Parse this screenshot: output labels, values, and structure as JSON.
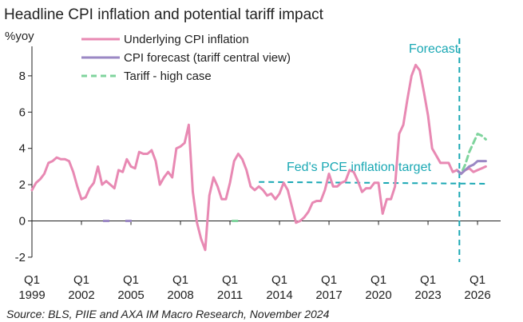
{
  "chart_data": {
    "type": "line",
    "title": "Headline CPI inflation and potential tariff impact",
    "ylabel": "%yoy",
    "ylim": [
      -2,
      10
    ],
    "xlim": [
      1999.0,
      2027.4
    ],
    "grid": false,
    "legend_position": "top-left",
    "yticks": [
      -2,
      0,
      2,
      4,
      6,
      8
    ],
    "xticks": [
      {
        "q": "Q1",
        "year": "1999",
        "x": 1999.0
      },
      {
        "q": "Q1",
        "year": "2002",
        "x": 2002.0
      },
      {
        "q": "Q1",
        "year": "2005",
        "x": 2005.0
      },
      {
        "q": "Q1",
        "year": "2008",
        "x": 2008.0
      },
      {
        "q": "Q1",
        "year": "2011",
        "x": 2011.0
      },
      {
        "q": "Q1",
        "year": "2014",
        "x": 2014.0
      },
      {
        "q": "Q1",
        "year": "2017",
        "x": 2017.0
      },
      {
        "q": "Q1",
        "year": "2020",
        "x": 2020.0
      },
      {
        "q": "Q1",
        "year": "2023",
        "x": 2023.0
      },
      {
        "q": "Q1",
        "year": "2026",
        "x": 2026.0
      }
    ],
    "series": [
      {
        "name": "Underlying CPI inflation",
        "color": "#e889b3",
        "style": "solid",
        "points": [
          [
            1999.0,
            1.7
          ],
          [
            1999.25,
            2.1
          ],
          [
            1999.5,
            2.3
          ],
          [
            1999.75,
            2.6
          ],
          [
            2000.0,
            3.2
          ],
          [
            2000.25,
            3.3
          ],
          [
            2000.5,
            3.5
          ],
          [
            2000.75,
            3.4
          ],
          [
            2001.0,
            3.4
          ],
          [
            2001.25,
            3.3
          ],
          [
            2001.5,
            2.7
          ],
          [
            2001.75,
            1.9
          ],
          [
            2002.0,
            1.2
          ],
          [
            2002.25,
            1.3
          ],
          [
            2002.5,
            1.8
          ],
          [
            2002.75,
            2.1
          ],
          [
            2003.0,
            3.0
          ],
          [
            2003.25,
            2.0
          ],
          [
            2003.5,
            2.2
          ],
          [
            2003.75,
            2.0
          ],
          [
            2004.0,
            1.8
          ],
          [
            2004.25,
            2.8
          ],
          [
            2004.5,
            2.7
          ],
          [
            2004.75,
            3.4
          ],
          [
            2005.0,
            3.0
          ],
          [
            2005.25,
            2.9
          ],
          [
            2005.5,
            3.8
          ],
          [
            2005.75,
            3.7
          ],
          [
            2006.0,
            3.7
          ],
          [
            2006.25,
            3.9
          ],
          [
            2006.5,
            3.3
          ],
          [
            2006.75,
            2.0
          ],
          [
            2007.0,
            2.4
          ],
          [
            2007.25,
            2.7
          ],
          [
            2007.5,
            2.4
          ],
          [
            2007.75,
            4.0
          ],
          [
            2008.0,
            4.1
          ],
          [
            2008.25,
            4.3
          ],
          [
            2008.5,
            5.3
          ],
          [
            2008.75,
            1.6
          ],
          [
            2009.0,
            -0.1
          ],
          [
            2009.25,
            -1.0
          ],
          [
            2009.5,
            -1.6
          ],
          [
            2009.75,
            1.4
          ],
          [
            2010.0,
            2.4
          ],
          [
            2010.25,
            1.9
          ],
          [
            2010.5,
            1.2
          ],
          [
            2010.75,
            1.2
          ],
          [
            2011.0,
            2.1
          ],
          [
            2011.25,
            3.3
          ],
          [
            2011.5,
            3.7
          ],
          [
            2011.75,
            3.4
          ],
          [
            2012.0,
            2.8
          ],
          [
            2012.25,
            1.9
          ],
          [
            2012.5,
            1.7
          ],
          [
            2012.75,
            1.9
          ],
          [
            2013.0,
            1.7
          ],
          [
            2013.25,
            1.4
          ],
          [
            2013.5,
            1.5
          ],
          [
            2013.75,
            1.2
          ],
          [
            2014.0,
            1.5
          ],
          [
            2014.25,
            2.1
          ],
          [
            2014.5,
            1.7
          ],
          [
            2014.75,
            0.8
          ],
          [
            2015.0,
            -0.1
          ],
          [
            2015.25,
            0.0
          ],
          [
            2015.5,
            0.2
          ],
          [
            2015.75,
            0.5
          ],
          [
            2016.0,
            1.0
          ],
          [
            2016.25,
            1.1
          ],
          [
            2016.5,
            1.1
          ],
          [
            2016.75,
            1.7
          ],
          [
            2017.0,
            2.6
          ],
          [
            2017.25,
            1.9
          ],
          [
            2017.5,
            1.9
          ],
          [
            2017.75,
            2.1
          ],
          [
            2018.0,
            2.2
          ],
          [
            2018.25,
            2.8
          ],
          [
            2018.5,
            2.7
          ],
          [
            2018.75,
            2.2
          ],
          [
            2019.0,
            1.6
          ],
          [
            2019.25,
            1.8
          ],
          [
            2019.5,
            1.8
          ],
          [
            2019.75,
            2.1
          ],
          [
            2020.0,
            2.1
          ],
          [
            2020.25,
            0.4
          ],
          [
            2020.5,
            1.2
          ],
          [
            2020.75,
            1.2
          ],
          [
            2021.0,
            1.9
          ],
          [
            2021.25,
            4.8
          ],
          [
            2021.5,
            5.3
          ],
          [
            2021.75,
            6.7
          ],
          [
            2022.0,
            8.0
          ],
          [
            2022.25,
            8.6
          ],
          [
            2022.5,
            8.3
          ],
          [
            2022.75,
            7.1
          ],
          [
            2023.0,
            5.8
          ],
          [
            2023.25,
            4.0
          ],
          [
            2023.5,
            3.6
          ],
          [
            2023.75,
            3.2
          ],
          [
            2024.0,
            3.2
          ],
          [
            2024.25,
            3.2
          ],
          [
            2024.5,
            2.7
          ],
          [
            2024.75,
            2.8
          ]
        ]
      },
      {
        "name": "CPI forecast (tariff central view)",
        "color": "#9b88c4",
        "style": "solid",
        "points": [
          [
            2024.75,
            2.8
          ],
          [
            2025.0,
            2.6
          ],
          [
            2025.25,
            2.8
          ],
          [
            2025.5,
            3.0
          ],
          [
            2025.75,
            3.1
          ],
          [
            2026.0,
            3.3
          ],
          [
            2026.25,
            3.3
          ],
          [
            2026.5,
            3.3
          ]
        ]
      },
      {
        "name": "Tariff - high case",
        "color": "#7fd49d",
        "style": "dashed",
        "points": [
          [
            2024.75,
            2.8
          ],
          [
            2025.0,
            2.6
          ],
          [
            2025.25,
            3.1
          ],
          [
            2025.5,
            3.8
          ],
          [
            2025.75,
            4.3
          ],
          [
            2026.0,
            4.8
          ],
          [
            2026.25,
            4.7
          ],
          [
            2026.5,
            4.5
          ]
        ]
      },
      {
        "name": "",
        "color": "#e889b3",
        "style": "solid",
        "points": [
          [
            2024.75,
            2.8
          ],
          [
            2025.0,
            2.6
          ],
          [
            2025.25,
            2.8
          ],
          [
            2025.5,
            2.9
          ],
          [
            2025.75,
            2.7
          ],
          [
            2026.0,
            2.8
          ],
          [
            2026.25,
            2.9
          ],
          [
            2026.5,
            3.0
          ]
        ]
      }
    ],
    "reference_lines": [
      {
        "orientation": "horizontal",
        "label": "Fed's PCE inflation target",
        "color": "#1aa8b4",
        "style": "dashed",
        "x_start": 2012.75,
        "x_end": 2026.5,
        "y_start": 2.15,
        "y_end": 2.05
      },
      {
        "orientation": "vertical",
        "label": "Forecast",
        "color": "#1aa8b4",
        "style": "dashed",
        "x": 2024.9
      }
    ],
    "axis_markers": [
      {
        "x": 2003.5,
        "color": "#9b88c4"
      },
      {
        "x": 2004.85,
        "color": "#9b88c4"
      },
      {
        "x": 2011.3,
        "color": "#7fd49d"
      }
    ],
    "source": "Source: BLS, PIIE and AXA IM Macro Research, November 2024"
  }
}
